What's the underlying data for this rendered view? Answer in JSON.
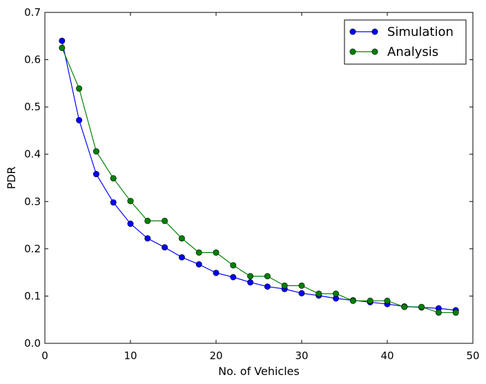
{
  "chart_data": {
    "type": "line",
    "xlabel": "No. of Vehicles",
    "ylabel": "PDR",
    "xlim": [
      0,
      50
    ],
    "ylim": [
      0,
      0.7
    ],
    "xticks": [
      0,
      10,
      20,
      30,
      40,
      50
    ],
    "yticks": [
      0.0,
      0.1,
      0.2,
      0.3,
      0.4,
      0.5,
      0.6,
      0.7
    ],
    "xtick_labels": [
      "0",
      "10",
      "20",
      "30",
      "40",
      "50"
    ],
    "ytick_labels": [
      "0.0",
      "0.1",
      "0.2",
      "0.3",
      "0.4",
      "0.5",
      "0.6",
      "0.7"
    ],
    "grid": false,
    "legend_position": "top-right",
    "x": [
      2,
      4,
      6,
      8,
      10,
      12,
      14,
      16,
      18,
      20,
      22,
      24,
      26,
      28,
      30,
      32,
      34,
      36,
      38,
      40,
      42,
      44,
      46,
      48
    ],
    "series": [
      {
        "name": "Simulation",
        "color": "#0000ff",
        "values": [
          0.64,
          0.472,
          0.358,
          0.298,
          0.253,
          0.222,
          0.203,
          0.182,
          0.167,
          0.149,
          0.14,
          0.129,
          0.12,
          0.115,
          0.106,
          0.101,
          0.095,
          0.091,
          0.087,
          0.083,
          0.078,
          0.076,
          0.074,
          0.07
        ]
      },
      {
        "name": "Analysis",
        "color": "#008000",
        "values": [
          0.625,
          0.539,
          0.406,
          0.349,
          0.301,
          0.259,
          0.259,
          0.222,
          0.192,
          0.192,
          0.165,
          0.142,
          0.142,
          0.122,
          0.122,
          0.105,
          0.105,
          0.09,
          0.09,
          0.09,
          0.077,
          0.077,
          0.065,
          0.065
        ]
      }
    ]
  }
}
